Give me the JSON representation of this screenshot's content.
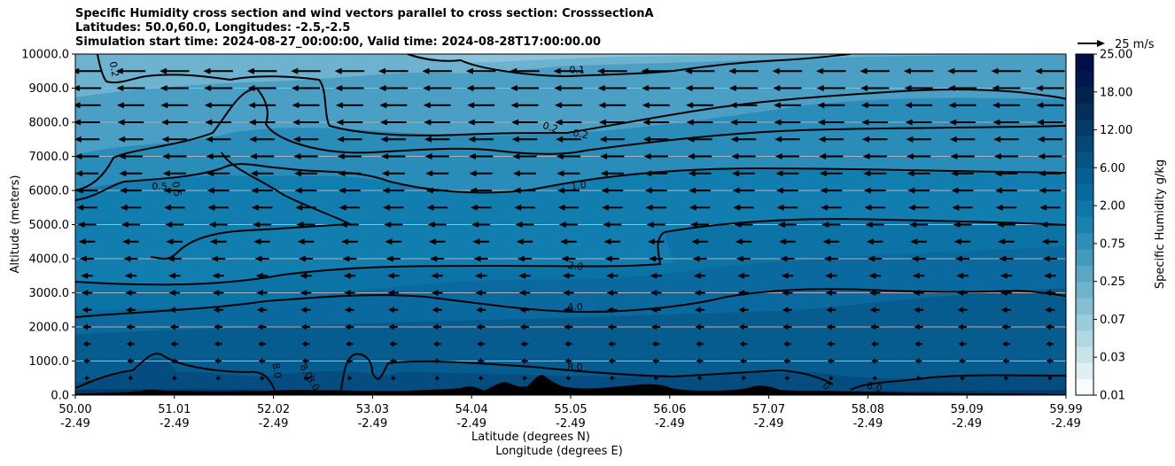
{
  "chart_data": {
    "type": "contour_cross_section",
    "title": [
      "Specific Humidity cross section and wind vectors parallel to cross section: CrosssectionA",
      "Latitudes: 50.0,60.0, Longitudes: -2.5,-2.5",
      "Simulation start time: 2024-08-27_00:00:00, Valid time: 2024-08-28T17:00:00.00"
    ],
    "xlabel": "Latitude (degrees N)",
    "xlabel2": "Longitude (degrees E)",
    "ylabel": "Altitude (meters)",
    "xlim": [
      50.0,
      59.99
    ],
    "ylim": [
      0,
      10000
    ],
    "x_tick_labels": [
      "50.00",
      "51.01",
      "52.02",
      "53.03",
      "54.04",
      "55.05",
      "56.06",
      "57.07",
      "58.08",
      "59.09",
      "59.99"
    ],
    "x_tick_labels_lon": [
      "-2.49",
      "-2.49",
      "-2.49",
      "-2.49",
      "-2.49",
      "-2.49",
      "-2.49",
      "-2.49",
      "-2.49",
      "-2.49",
      "-2.49"
    ],
    "y_ticks": [
      0,
      1000,
      2000,
      3000,
      4000,
      5000,
      6000,
      7000,
      8000,
      9000,
      10000
    ],
    "y_tick_labels": [
      "0.0",
      "1000.0",
      "2000.0",
      "3000.0",
      "4000.0",
      "5000.0",
      "6000.0",
      "7000.0",
      "8000.0",
      "9000.0",
      "10000.0"
    ],
    "grid": "horizontal",
    "colorbar": {
      "label": "Specific Humidity g/kg",
      "levels": [
        "0.01",
        "0.03",
        "0.07",
        "0.25",
        "0.75",
        "2.00",
        "6.00",
        "12.00",
        "18.00",
        "25.00"
      ],
      "colors": [
        "#f7fcfd",
        "#e0eff3",
        "#c9e3ea",
        "#b2d7e2",
        "#9ccbdb",
        "#86bed3",
        "#6fb2cb",
        "#5aa6c4",
        "#449abd",
        "#2f8eb5",
        "#1a82ad",
        "#0e77a8",
        "#086b9f",
        "#075f93",
        "#065384",
        "#054776",
        "#043b68",
        "#032f5a",
        "#02234c",
        "#01174e",
        "#010e4a"
      ]
    },
    "quiver_key": {
      "label": "25 m/s",
      "value": 25
    },
    "contour_labels": [
      {
        "text": "0.1",
        "x": 55.06,
        "y": 9440,
        "rot": 0
      },
      {
        "text": "0.2",
        "x": 50.36,
        "y": 9540,
        "rot": 80
      },
      {
        "text": "0.2",
        "x": 55.09,
        "y": 7560,
        "rot": 10
      },
      {
        "text": "0.2",
        "x": 54.78,
        "y": 7760,
        "rot": 18
      },
      {
        "text": "0.5",
        "x": 50.85,
        "y": 6020,
        "rot": 0
      },
      {
        "text": "0.5",
        "x": 50.99,
        "y": 6020,
        "rot": 80
      },
      {
        "text": "1.0",
        "x": 55.08,
        "y": 6050,
        "rot": -8
      },
      {
        "text": "2.0",
        "x": 55.04,
        "y": 3690,
        "rot": 8
      },
      {
        "text": "4.0",
        "x": 55.04,
        "y": 2490,
        "rot": 0
      },
      {
        "text": "8.0",
        "x": 55.04,
        "y": 730,
        "rot": 0
      },
      {
        "text": "8.0",
        "x": 52.0,
        "y": 700,
        "rot": 80
      },
      {
        "text": "8.0",
        "x": 52.3,
        "y": 650,
        "rot": 60
      },
      {
        "text": "8.0",
        "x": 52.37,
        "y": 300,
        "rot": 60
      },
      {
        "text": "0",
        "x": 57.55,
        "y": 200,
        "rot": 45
      },
      {
        "text": "8.0",
        "x": 58.05,
        "y": 150,
        "rot": 15
      }
    ],
    "wind_vectors": {
      "u_by_level": [
        {
          "z": 500,
          "u": -4
        },
        {
          "z": 1000,
          "u": -6
        },
        {
          "z": 1500,
          "u": -7
        },
        {
          "z": 2000,
          "u": -8
        },
        {
          "z": 2500,
          "u": -9
        },
        {
          "z": 3000,
          "u": -10
        },
        {
          "z": 3500,
          "u": -11
        },
        {
          "z": 4000,
          "u": -13
        },
        {
          "z": 4500,
          "u": -15
        },
        {
          "z": 5000,
          "u": -17
        },
        {
          "z": 5500,
          "u": -19
        },
        {
          "z": 6000,
          "u": -20
        },
        {
          "z": 6500,
          "u": -21
        },
        {
          "z": 7000,
          "u": -22
        },
        {
          "z": 7500,
          "u": -23
        },
        {
          "z": 8000,
          "u": -24
        },
        {
          "z": 8500,
          "u": -25
        },
        {
          "z": 9000,
          "u": -26
        },
        {
          "z": 9500,
          "u": -27
        }
      ]
    }
  }
}
